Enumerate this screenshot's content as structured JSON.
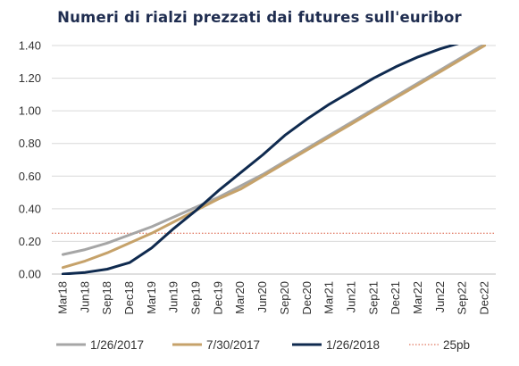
{
  "chart_data": {
    "type": "line",
    "title": "Numeri di rialzi prezzati dai futures sull'euribor",
    "xlabel": "",
    "ylabel": "",
    "ylim": [
      0,
      1.4
    ],
    "yticks": [
      "0.00",
      "0.20",
      "0.40",
      "0.60",
      "0.80",
      "1.00",
      "1.20",
      "1.40"
    ],
    "categories": [
      "Mar18",
      "Jun18",
      "Sep18",
      "Dec18",
      "Mar19",
      "Jun19",
      "Sep19",
      "Dec19",
      "Mar20",
      "Jun20",
      "Sep20",
      "Dec20",
      "Mar21",
      "Jun21",
      "Sep21",
      "Dec21",
      "Mar22",
      "Jun22",
      "Sep22",
      "Dec22"
    ],
    "grid": true,
    "legend_position": "bottom",
    "series": [
      {
        "name": "1/26/2017",
        "color": "#a6a6a6",
        "width": 3,
        "values": [
          0.12,
          0.15,
          0.19,
          0.24,
          0.29,
          0.35,
          0.41,
          0.47,
          0.54,
          0.61,
          0.69,
          0.77,
          0.85,
          0.93,
          1.01,
          1.09,
          1.17,
          1.25,
          1.33,
          1.41
        ]
      },
      {
        "name": "7/30/2017",
        "color": "#c6a26a",
        "width": 3,
        "values": [
          0.04,
          0.08,
          0.13,
          0.19,
          0.25,
          0.32,
          0.39,
          0.46,
          0.52,
          0.6,
          0.68,
          0.76,
          0.84,
          0.92,
          1.0,
          1.08,
          1.16,
          1.24,
          1.32,
          1.4
        ]
      },
      {
        "name": "1/26/2018",
        "color": "#0f2a4f",
        "width": 3,
        "values": [
          0.0,
          0.01,
          0.03,
          0.07,
          0.16,
          0.28,
          0.39,
          0.51,
          0.62,
          0.73,
          0.85,
          0.95,
          1.04,
          1.12,
          1.2,
          1.27,
          1.33,
          1.38,
          1.42,
          1.46
        ]
      }
    ],
    "reference_line": {
      "name": "25pb",
      "value": 0.25,
      "color": "#d9573a",
      "style": "dotted"
    }
  }
}
